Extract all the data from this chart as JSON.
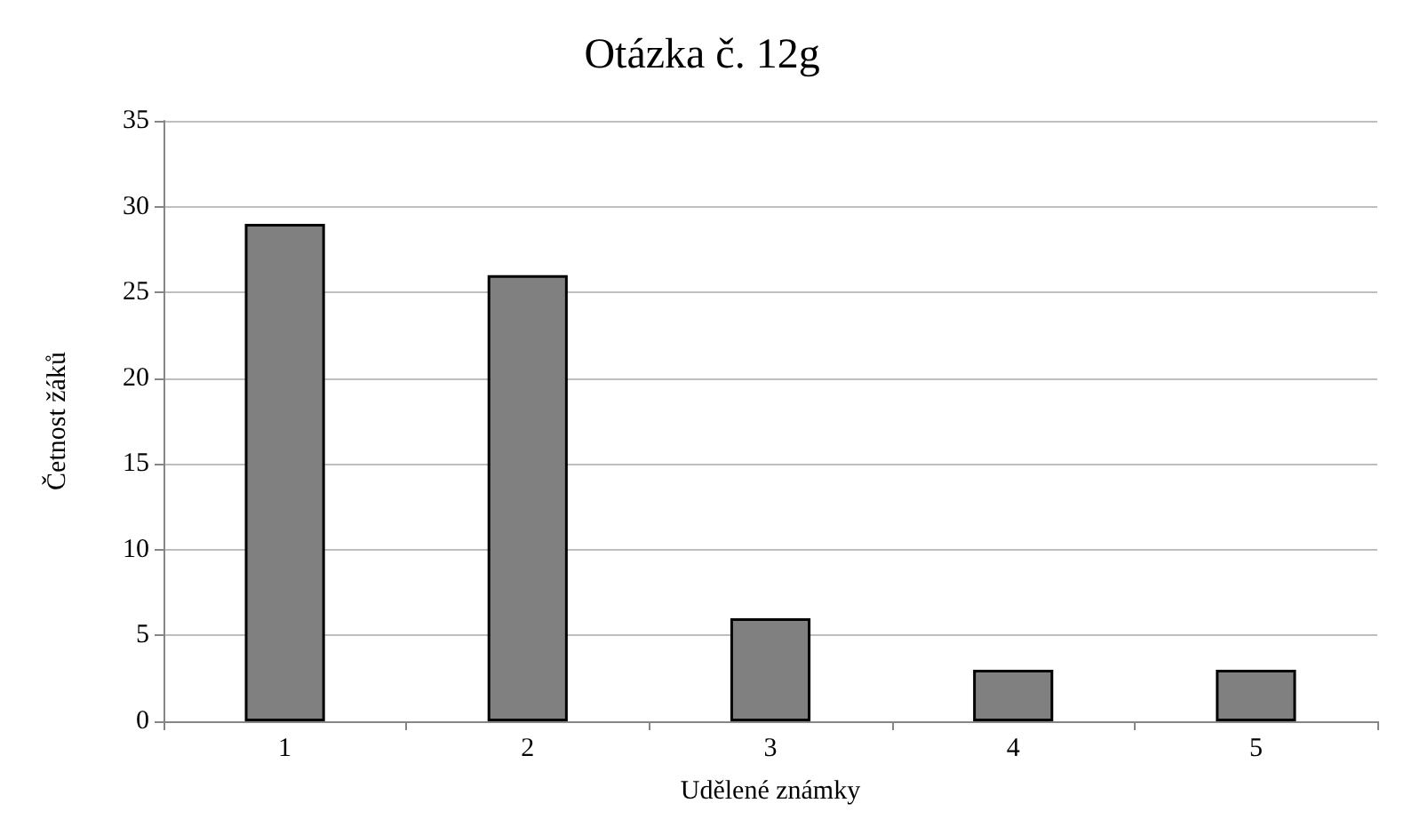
{
  "chart_data": {
    "type": "bar",
    "title": "Otázka č. 12g",
    "xlabel": "Udělené známky",
    "ylabel": "Četnost žáků",
    "categories": [
      "1",
      "2",
      "3",
      "4",
      "5"
    ],
    "values": [
      29,
      26,
      6,
      3,
      3
    ],
    "color": "#808080",
    "ylim": [
      0,
      35
    ],
    "yticks": [
      0,
      5,
      10,
      15,
      20,
      25,
      30,
      35
    ],
    "grid": "y"
  }
}
